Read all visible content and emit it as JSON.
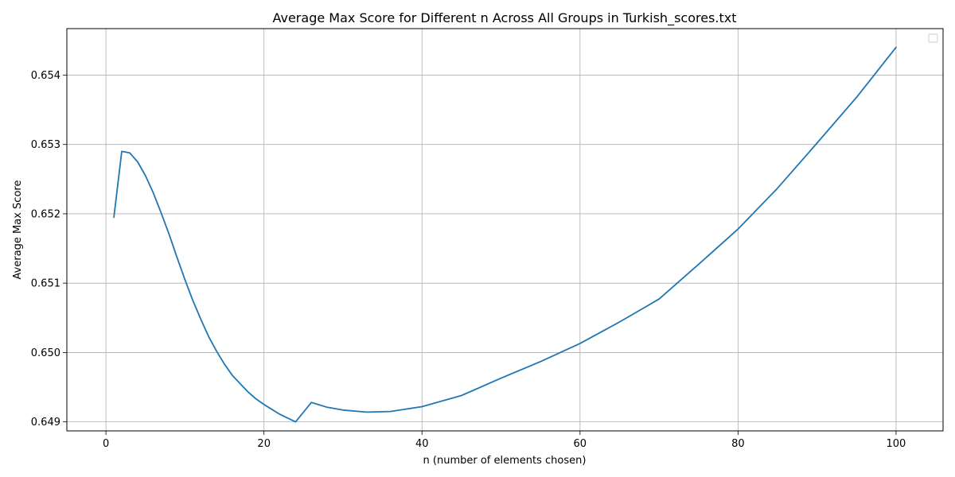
{
  "chart_data": {
    "type": "line",
    "title": "Average Max Score for Different n Across All Groups in Turkish_scores.txt",
    "xlabel": "n (number of elements chosen)",
    "ylabel": "Average Max Score",
    "xlim": [
      -4.95,
      105.95
    ],
    "ylim": [
      0.64887,
      0.65467
    ],
    "xticks": [
      0,
      20,
      40,
      60,
      80,
      100
    ],
    "xtick_labels": [
      "0",
      "20",
      "40",
      "60",
      "80",
      "100"
    ],
    "yticks": [
      0.649,
      0.65,
      0.651,
      0.652,
      0.653,
      0.654
    ],
    "ytick_labels": [
      "0.649",
      "0.650",
      "0.651",
      "0.652",
      "0.653",
      "0.654"
    ],
    "grid": true,
    "legend": "top-right (empty)",
    "line_color": "#1f77b4",
    "series": [
      {
        "x": [
          1,
          2,
          3,
          4,
          5,
          6,
          7,
          8,
          9,
          10,
          11,
          12,
          13,
          14,
          15,
          16,
          17,
          18,
          19,
          20,
          22,
          24,
          26,
          28,
          30,
          33,
          36,
          40,
          45,
          50,
          55,
          60,
          65,
          70,
          75,
          80,
          85,
          90,
          95,
          100
        ],
        "values": [
          0.65195,
          0.6529,
          0.65288,
          0.65275,
          0.65255,
          0.6523,
          0.65201,
          0.6517,
          0.65137,
          0.65105,
          0.65075,
          0.65048,
          0.65023,
          0.65002,
          0.64983,
          0.64967,
          0.64955,
          0.64943,
          0.64933,
          0.64925,
          0.64911,
          0.649,
          0.64928,
          0.64921,
          0.64917,
          0.64914,
          0.64915,
          0.64922,
          0.64938,
          0.64963,
          0.64987,
          0.65013,
          0.65044,
          0.65077,
          0.65127,
          0.65178,
          0.65237,
          0.65302,
          0.65368,
          0.6544
        ]
      }
    ]
  }
}
